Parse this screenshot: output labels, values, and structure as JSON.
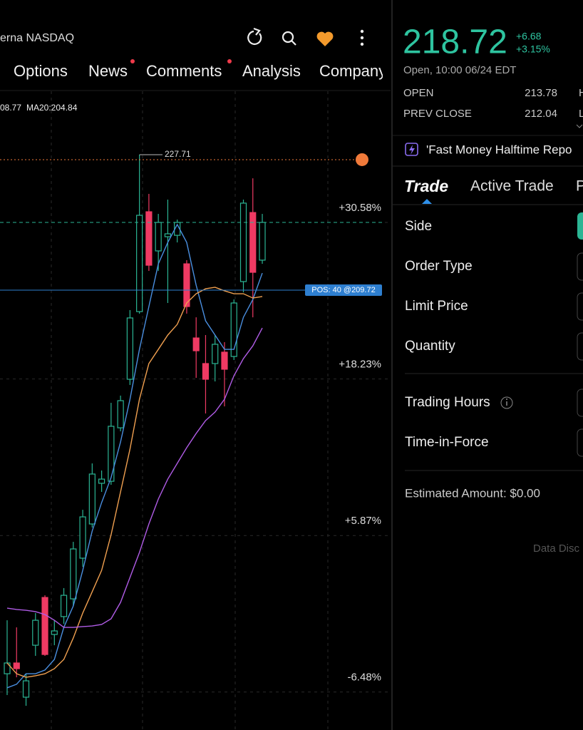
{
  "header": {
    "symbol": "erna NASDAQ",
    "tabs": [
      "Options",
      "News",
      "Comments",
      "Analysis",
      "Company"
    ]
  },
  "chart_data": {
    "type": "candlestick",
    "ma_legend": [
      {
        "label": "08.77",
        "color": "#f0a050"
      },
      {
        "label": "MA20:204.84",
        "color": "#b05ce6"
      }
    ],
    "ylim": [
      -10.6,
      39.81
    ],
    "yticks": [
      {
        "value": 30.58,
        "label": "+30.58%"
      },
      {
        "value": 18.23,
        "label": "+18.23%"
      },
      {
        "value": 5.87,
        "label": "+5.87%"
      },
      {
        "value": -6.48,
        "label": "-6.48%"
      }
    ],
    "grid": true,
    "up_color": "#2bb594",
    "down_color": "#ef3a63",
    "candles": {
      "open": [
        -6.16,
        -5.31,
        -8.01,
        -3.91,
        -0.14,
        -3.06,
        -1.65,
        -0.25,
        2.96,
        5.66,
        8.87,
        9.03,
        13.25,
        17.08,
        22.42,
        30.3,
        27.21,
        28.33,
        28.44,
        26.19,
        20.34,
        18.32,
        18.32,
        19.22,
        18.88,
        24.79,
        30.24,
        26.48
      ],
      "high": [
        -1.94,
        -2.5,
        -6.16,
        -1.37,
        0.03,
        -1.94,
        0.6,
        4.25,
        6.78,
        10.44,
        9.88,
        15.22,
        15.79,
        22.54,
        34.8,
        31.71,
        30.13,
        31.26,
        29.68,
        26.48,
        21.97,
        20.57,
        20.57,
        20.01,
        23.38,
        31.26,
        32.94,
        30.13
      ],
      "low": [
        -7.84,
        -6.44,
        -8.69,
        -4.75,
        -4.75,
        -3.91,
        -2.22,
        -0.81,
        2.28,
        5.38,
        8.19,
        8.75,
        12.97,
        16.63,
        22.26,
        25.63,
        25.63,
        23.1,
        27.88,
        22.26,
        17.19,
        14.38,
        16.91,
        14.94,
        18.6,
        23.94,
        21.97,
        26.19
      ],
      "close": [
        -5.31,
        -5.76,
        -6.72,
        -1.94,
        -4.64,
        -2.78,
        0.03,
        3.69,
        6.22,
        9.6,
        9.2,
        13.37,
        15.39,
        21.92,
        30.02,
        26.08,
        29.46,
        28.56,
        29.46,
        22.82,
        19.33,
        17.08,
        19.84,
        17.87,
        23.1,
        30.98,
        25.52,
        29.46
      ]
    },
    "series": [
      {
        "color": "#4a8fe0",
        "values": [
          -7.27,
          -6.99,
          -6.16,
          -6.16,
          -5.87,
          -5.03,
          -2.5,
          -0.81,
          2.0,
          5.1,
          7.35,
          9.32,
          12.13,
          15.5,
          19.44,
          22.82,
          26.19,
          27.88,
          29.29,
          27.88,
          24.51,
          21.69,
          20.57,
          19.44,
          19.44,
          21.97,
          23.38,
          25.46
        ]
      },
      {
        "color": "#f0a050",
        "values": [
          -5.31,
          -6.16,
          -6.44,
          -6.32,
          -6.16,
          -5.76,
          -5.03,
          -3.34,
          -1.37,
          0.31,
          2.0,
          4.81,
          8.19,
          11.57,
          15.5,
          18.32,
          19.44,
          20.57,
          21.41,
          23.1,
          23.83,
          24.22,
          24.34,
          24.06,
          23.83,
          23.83,
          23.49,
          23.61
        ]
      },
      {
        "color": "#b05ce6",
        "values": [
          -0.98,
          -1.09,
          -1.15,
          -1.26,
          -1.49,
          -1.94,
          -2.5,
          -2.5,
          -2.44,
          -2.39,
          -2.27,
          -1.82,
          -0.53,
          1.44,
          3.41,
          5.66,
          7.63,
          9.2,
          10.44,
          11.68,
          12.8,
          13.82,
          14.49,
          15.5,
          17.36,
          18.71,
          19.72,
          21.13
        ]
      }
    ],
    "high_marker": {
      "value": 34.8,
      "label": "227.71"
    },
    "alert_line": {
      "value": 34.41,
      "color": "#f07a3a"
    },
    "last_line": {
      "value": 29.46,
      "color": "#2bb594"
    },
    "position": {
      "value": 24.11,
      "label": "POS: 40 @209.72",
      "color": "#2e7fd0"
    }
  },
  "quote": {
    "price": 218.72,
    "change": "+6.68",
    "change_pct": "+3.15%",
    "status": "Open, 10:00 06/24 EDT",
    "stats": [
      {
        "label": "OPEN",
        "value": 213.78,
        "next": "H"
      },
      {
        "label": "PREV CLOSE",
        "value": 212.04,
        "next": "L"
      }
    ],
    "news": "'Fast Money Halftime Repo"
  },
  "trade": {
    "tabs": [
      "Trade",
      "Active Trade",
      "P"
    ],
    "fields": [
      "Side",
      "Order Type",
      "Limit Price",
      "Quantity"
    ],
    "fields2": [
      "Trading Hours",
      "Time-in-Force"
    ],
    "estimate": "Estimated Amount: $0.00",
    "disclaimer": "Data Disc"
  }
}
